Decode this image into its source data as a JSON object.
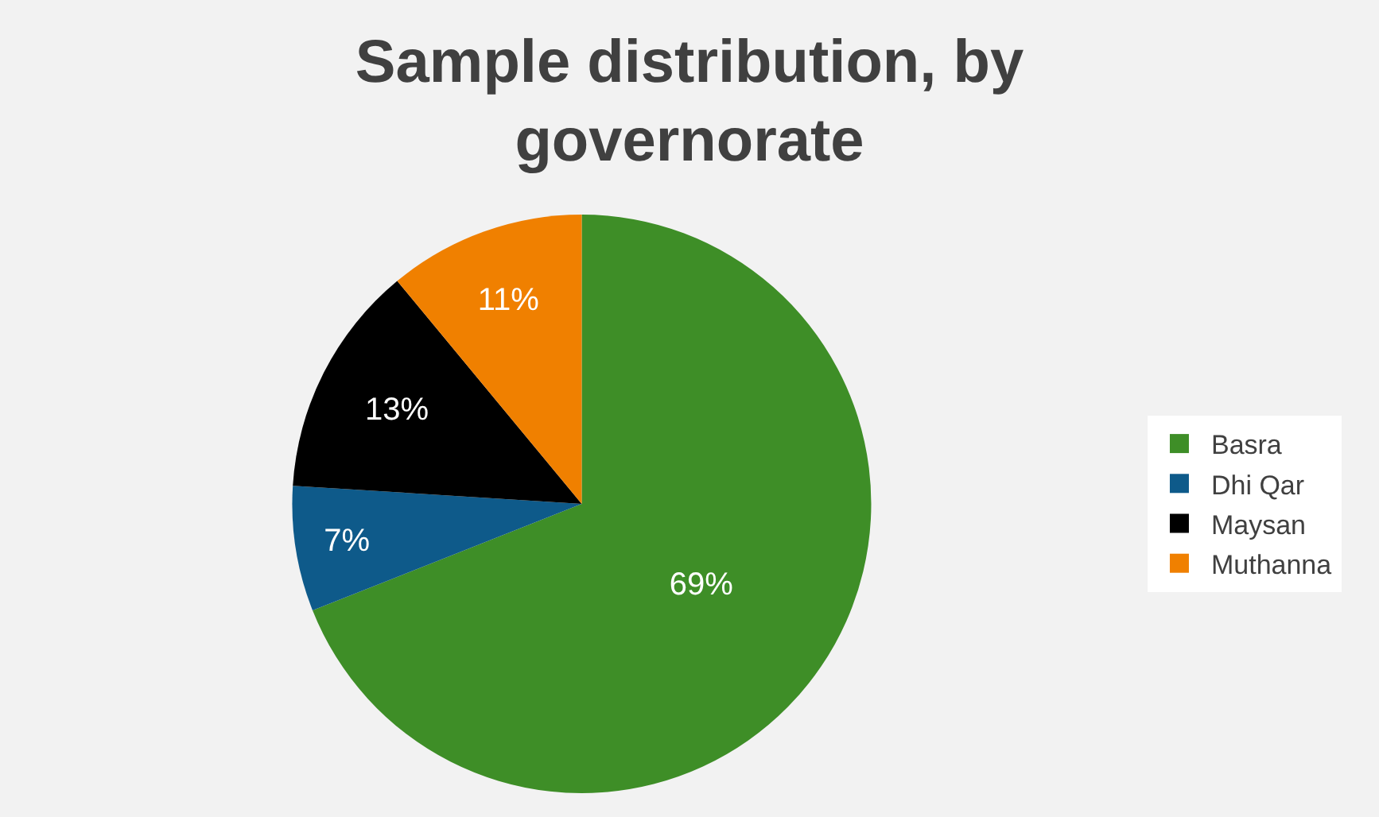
{
  "chart_data": {
    "type": "pie",
    "title": "Sample distribution, by governorate",
    "categories": [
      "Basra",
      "Dhi Qar",
      "Maysan",
      "Muthanna"
    ],
    "values": [
      69,
      7,
      13,
      11
    ],
    "colors": [
      "#3e8e27",
      "#0e5a8a",
      "#000000",
      "#f08000"
    ],
    "value_labels": [
      "69%",
      "7%",
      "13%",
      "11%"
    ],
    "legend": "right"
  }
}
